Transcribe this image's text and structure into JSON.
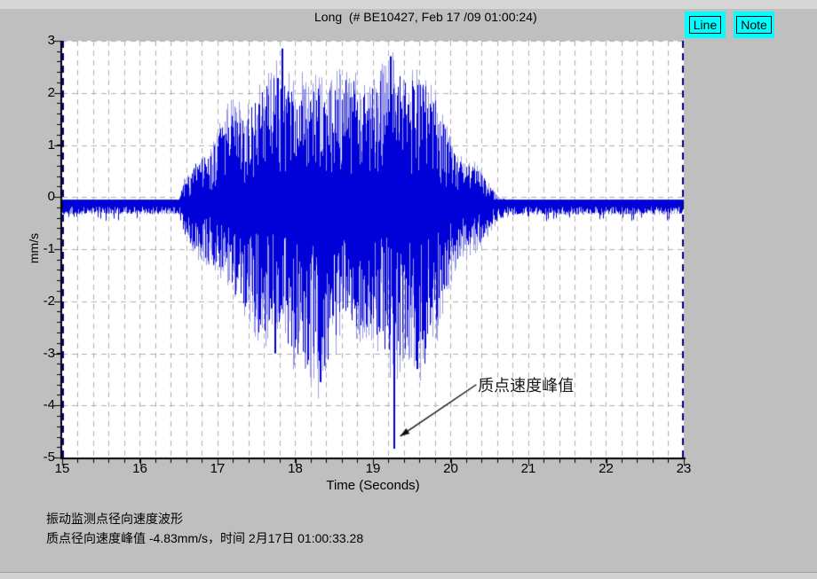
{
  "window": {
    "bg_color": "#bfbfbf"
  },
  "header": {
    "title": "Long  (# BE10427, Feb 17 /09 01:00:24)",
    "buttons": [
      {
        "label": "Line"
      },
      {
        "label": "Note"
      }
    ],
    "button_color": "#00ffff"
  },
  "chart_data": {
    "type": "line",
    "title": "Long (# BE10427, Feb 17 /09 01:00:24)",
    "xlabel": "Time (Seconds)",
    "ylabel": "mm/s",
    "xlim": [
      15,
      23
    ],
    "ylim": [
      -5,
      3
    ],
    "x_ticks": [
      15,
      16,
      17,
      18,
      19,
      20,
      21,
      22,
      23
    ],
    "y_ticks": [
      3,
      2,
      1,
      0,
      -1,
      -2,
      -3,
      -4,
      -5
    ],
    "x_minor_step": 0.2,
    "y_minor_step": 0.2,
    "grid": "dashed",
    "grid_color": "#b0b0b0",
    "plot_bg": "#ffffff",
    "axis_color": "#000000",
    "edge_cursor_color": "#000080",
    "event_window_s": [
      16.55,
      20.6
    ],
    "peak": {
      "time_s": 19.27,
      "value_mm_s": -4.83
    },
    "max_positive": {
      "time_s": 17.83,
      "value_mm_s": 2.85
    },
    "series": [
      {
        "name": "radial particle velocity",
        "color": "#0000d8",
        "halo_color": "#9a9ae8",
        "baseline_center": -0.12,
        "baseline_halfwidth": 0.07,
        "noise_seed": 12345,
        "envelope": [
          [
            15.0,
            0.05,
            0.2
          ],
          [
            16.5,
            0.05,
            0.2
          ],
          [
            16.58,
            0.5,
            0.6
          ],
          [
            16.75,
            0.85,
            1.0
          ],
          [
            16.95,
            1.1,
            1.2
          ],
          [
            17.15,
            1.9,
            1.6
          ],
          [
            17.35,
            1.75,
            2.0
          ],
          [
            17.55,
            2.1,
            2.55
          ],
          [
            17.75,
            2.6,
            2.45
          ],
          [
            17.95,
            2.25,
            2.9
          ],
          [
            18.15,
            2.4,
            3.2
          ],
          [
            18.3,
            2.25,
            3.55
          ],
          [
            18.5,
            2.3,
            2.7
          ],
          [
            18.7,
            2.45,
            2.3
          ],
          [
            18.9,
            2.15,
            2.55
          ],
          [
            19.1,
            2.45,
            2.65
          ],
          [
            19.27,
            2.65,
            3.2
          ],
          [
            19.45,
            2.4,
            2.95
          ],
          [
            19.65,
            2.3,
            3.25
          ],
          [
            19.8,
            2.05,
            2.6
          ],
          [
            19.95,
            1.4,
            1.7
          ],
          [
            20.1,
            0.85,
            1.05
          ],
          [
            20.3,
            0.75,
            0.95
          ],
          [
            20.5,
            0.35,
            0.55
          ],
          [
            20.62,
            0.12,
            0.3
          ],
          [
            20.85,
            0.06,
            0.22
          ],
          [
            23.0,
            0.05,
            0.2
          ]
        ],
        "notable_extremes": [
          {
            "t": 19.27,
            "v": -4.83
          },
          {
            "t": 17.83,
            "v": 2.85
          },
          {
            "t": 19.23,
            "v": 2.7
          },
          {
            "t": 18.33,
            "v": -3.55
          },
          {
            "t": 19.57,
            "v": -3.3
          },
          {
            "t": 17.74,
            "v": -3.0
          }
        ]
      }
    ],
    "annotation": {
      "text": "质点速度峰值",
      "text_pos": [
        20.35,
        -3.42
      ],
      "arrow_from": [
        20.33,
        -3.6
      ],
      "arrow_to": [
        19.35,
        -4.59
      ]
    }
  },
  "footer": {
    "line1": "振动监测点径向速度波形",
    "line2": "质点径向速度峰值 -4.83mm/s，时间 2月17日 01:00:33.28"
  }
}
